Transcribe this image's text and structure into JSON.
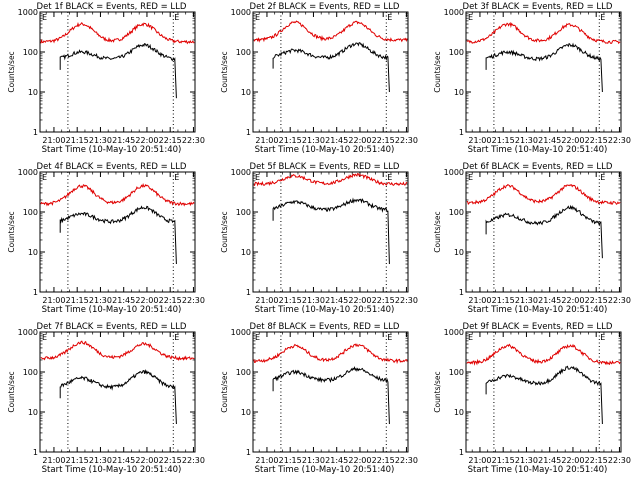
{
  "chart_data": [
    {
      "type": "line",
      "title": "Det 1f BLACK = Events, RED = LLD",
      "xlabel": "Start Time (10-May-10 20:51:40)",
      "ylabel": "Counts/sec",
      "yscale": "log",
      "ylim": [
        1,
        1000
      ],
      "x_ticks": [
        "21:00",
        "21:15",
        "21:30",
        "21:45",
        "22:00",
        "22:15",
        "22:30"
      ],
      "y_ticks": [
        "1",
        "10",
        "100",
        "1000"
      ],
      "corner_labels": [
        "E",
        "E"
      ],
      "vlines": [
        "21:09",
        "22:17"
      ],
      "red_base": 180,
      "black_base": 65,
      "red_peaks": [
        500,
        500
      ],
      "black_peaks": [
        100,
        150
      ],
      "black_start": "21:04",
      "black_end": "22:19",
      "black_end_value": 7
    },
    {
      "type": "line",
      "title": "Det 2f BLACK = Events, RED = LLD",
      "xlabel": "Start Time (10-May-10 20:51:40)",
      "ylabel": "Counts/sec",
      "yscale": "log",
      "ylim": [
        1,
        1000
      ],
      "x_ticks": [
        "21:00",
        "21:15",
        "21:30",
        "21:45",
        "22:00",
        "22:15",
        "22:30"
      ],
      "y_ticks": [
        "1",
        "10",
        "100",
        "1000"
      ],
      "corner_labels": [
        "E",
        "E"
      ],
      "vlines": [
        "21:09",
        "22:17"
      ],
      "red_base": 200,
      "black_base": 70,
      "red_peaks": [
        550,
        550
      ],
      "black_peaks": [
        110,
        160
      ],
      "black_start": "21:04",
      "black_end": "22:19",
      "black_end_value": 10
    },
    {
      "type": "line",
      "title": "Det 3f BLACK = Events, RED = LLD",
      "xlabel": "Start Time (10-May-10 20:51:40)",
      "ylabel": "Counts/sec",
      "yscale": "log",
      "ylim": [
        1,
        1000
      ],
      "x_ticks": [
        "21:00",
        "21:15",
        "21:30",
        "21:45",
        "22:00",
        "22:15",
        "22:30"
      ],
      "y_ticks": [
        "1",
        "10",
        "100",
        "1000"
      ],
      "corner_labels": [
        "E",
        "E"
      ],
      "vlines": [
        "21:09",
        "22:17"
      ],
      "red_base": 180,
      "black_base": 65,
      "red_peaks": [
        500,
        480
      ],
      "black_peaks": [
        100,
        150
      ],
      "black_start": "21:04",
      "black_end": "22:19",
      "black_end_value": 10
    },
    {
      "type": "line",
      "title": "Det 4f BLACK = Events, RED = LLD",
      "xlabel": "Start Time (10-May-10 20:51:40)",
      "ylabel": "Counts/sec",
      "yscale": "log",
      "ylim": [
        1,
        1000
      ],
      "x_ticks": [
        "21:00",
        "21:15",
        "21:30",
        "21:45",
        "22:00",
        "22:15",
        "22:30"
      ],
      "y_ticks": [
        "1",
        "10",
        "100",
        "1000"
      ],
      "corner_labels": [
        "E",
        "E"
      ],
      "vlines": [
        "21:09",
        "22:17"
      ],
      "red_base": 160,
      "black_base": 55,
      "red_peaks": [
        450,
        450
      ],
      "black_peaks": [
        90,
        130
      ],
      "black_start": "21:04",
      "black_end": "22:19",
      "black_end_value": 5
    },
    {
      "type": "line",
      "title": "Det 5f BLACK = Events, RED = LLD",
      "xlabel": "Start Time (10-May-10 20:51:40)",
      "ylabel": "Counts/sec",
      "yscale": "log",
      "ylim": [
        1,
        1000
      ],
      "x_ticks": [
        "21:00",
        "21:15",
        "21:30",
        "21:45",
        "22:00",
        "22:15",
        "22:30"
      ],
      "y_ticks": [
        "1",
        "10",
        "100",
        "1000"
      ],
      "corner_labels": [
        "E",
        "E"
      ],
      "vlines": [
        "21:09",
        "22:17"
      ],
      "red_base": 500,
      "black_base": 110,
      "red_peaks": [
        800,
        850
      ],
      "black_peaks": [
        180,
        200
      ],
      "black_start": "21:04",
      "black_end": "22:19",
      "black_end_value": 5
    },
    {
      "type": "line",
      "title": "Det 6f BLACK = Events, RED = LLD",
      "xlabel": "Start Time (10-May-10 20:51:40)",
      "ylabel": "Counts/sec",
      "yscale": "log",
      "ylim": [
        1,
        1000
      ],
      "x_ticks": [
        "21:00",
        "21:15",
        "21:30",
        "21:45",
        "22:00",
        "22:15",
        "22:30"
      ],
      "y_ticks": [
        "1",
        "10",
        "100",
        "1000"
      ],
      "corner_labels": [
        "E",
        "E"
      ],
      "vlines": [
        "21:09",
        "22:17"
      ],
      "red_base": 170,
      "black_base": 50,
      "red_peaks": [
        450,
        460
      ],
      "black_peaks": [
        85,
        130
      ],
      "black_start": "21:04",
      "black_end": "22:19",
      "black_end_value": 7
    },
    {
      "type": "line",
      "title": "Det 7f BLACK = Events, RED = LLD",
      "xlabel": "Start Time (10-May-10 20:51:40)",
      "ylabel": "Counts/sec",
      "yscale": "log",
      "ylim": [
        1,
        1000
      ],
      "x_ticks": [
        "21:00",
        "21:15",
        "21:30",
        "21:45",
        "22:00",
        "22:15",
        "22:30"
      ],
      "y_ticks": [
        "1",
        "10",
        "100",
        "1000"
      ],
      "corner_labels": [
        "E",
        "E"
      ],
      "vlines": [
        "21:09",
        "22:17"
      ],
      "red_base": 220,
      "black_base": 40,
      "red_peaks": [
        550,
        500
      ],
      "black_peaks": [
        70,
        100
      ],
      "black_start": "21:04",
      "black_end": "22:19",
      "black_end_value": 5
    },
    {
      "type": "line",
      "title": "Det 8f BLACK = Events, RED = LLD",
      "xlabel": "Start Time (10-May-10 20:51:40)",
      "ylabel": "Counts/sec",
      "yscale": "log",
      "ylim": [
        1,
        1000
      ],
      "x_ticks": [
        "21:00",
        "21:15",
        "21:30",
        "21:45",
        "22:00",
        "22:15",
        "22:30"
      ],
      "y_ticks": [
        "1",
        "10",
        "100",
        "1000"
      ],
      "corner_labels": [
        "E",
        "E"
      ],
      "vlines": [
        "21:09",
        "22:17"
      ],
      "red_base": 190,
      "black_base": 60,
      "red_peaks": [
        450,
        480
      ],
      "black_peaks": [
        100,
        120
      ],
      "black_start": "21:04",
      "black_end": "22:19",
      "black_end_value": 5
    },
    {
      "type": "line",
      "title": "Det 9f BLACK = Events, RED = LLD",
      "xlabel": "Start Time (10-May-10 20:51:40)",
      "ylabel": "Counts/sec",
      "yscale": "log",
      "ylim": [
        1,
        1000
      ],
      "x_ticks": [
        "21:00",
        "21:15",
        "21:30",
        "21:45",
        "22:00",
        "22:15",
        "22:30"
      ],
      "y_ticks": [
        "1",
        "10",
        "100",
        "1000"
      ],
      "corner_labels": [
        "E",
        "E"
      ],
      "vlines": [
        "21:09",
        "22:17"
      ],
      "red_base": 170,
      "black_base": 50,
      "red_peaks": [
        450,
        450
      ],
      "black_peaks": [
        80,
        130
      ],
      "black_start": "21:04",
      "black_end": "22:19",
      "black_end_value": 5
    }
  ],
  "colors": {
    "events": "#000000",
    "lld": "#e00000",
    "axis": "#000000"
  }
}
